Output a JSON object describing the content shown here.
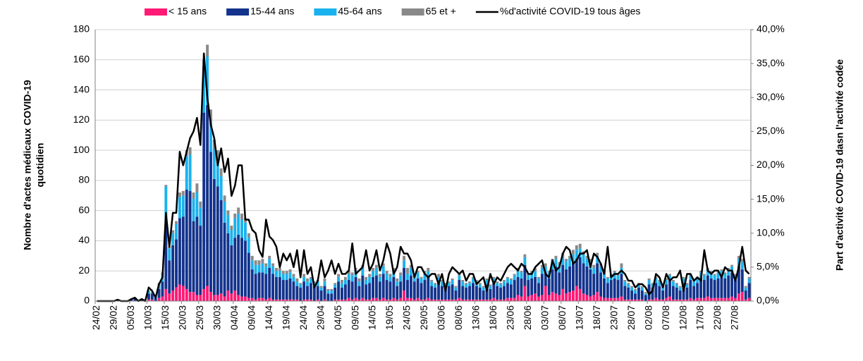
{
  "chart_data": {
    "type": "bar",
    "stacked": true,
    "y_label": [
      "Nombre d'actes médicaux COVID-19",
      "quotidien"
    ],
    "y2_label": "Part d'activité COVID-19 dasn l'activité codée",
    "categories": [
      "24/02",
      null,
      null,
      null,
      null,
      "29/02",
      null,
      null,
      null,
      null,
      "05/03",
      null,
      null,
      null,
      null,
      "10/03",
      null,
      null,
      null,
      null,
      "15/03",
      null,
      null,
      null,
      null,
      "20/03",
      null,
      null,
      null,
      null,
      "25/03",
      null,
      null,
      null,
      null,
      "30/03",
      null,
      null,
      null,
      null,
      "04/04",
      null,
      null,
      null,
      null,
      "09/04",
      null,
      null,
      null,
      null,
      "14/04",
      null,
      null,
      null,
      null,
      "19/04",
      null,
      null,
      null,
      null,
      "24/04",
      null,
      null,
      null,
      null,
      "29/04",
      null,
      null,
      null,
      null,
      "04/05",
      null,
      null,
      null,
      null,
      "09/05",
      null,
      null,
      null,
      null,
      "14/05",
      null,
      null,
      null,
      null,
      "19/05",
      null,
      null,
      null,
      null,
      "24/05",
      null,
      null,
      null,
      null,
      "29/05",
      null,
      null,
      null,
      null,
      "03/06",
      null,
      null,
      null,
      null,
      "08/06",
      null,
      null,
      null,
      null,
      "13/06",
      null,
      null,
      null,
      null,
      "18/06",
      null,
      null,
      null,
      null,
      "23/06",
      null,
      null,
      null,
      null,
      "28/06",
      null,
      null,
      null,
      null,
      "03/07",
      null,
      null,
      null,
      null,
      "08/07",
      null,
      null,
      null,
      null,
      "13/07",
      null,
      null,
      null,
      null,
      "18/07",
      null,
      null,
      null,
      null,
      "23/07",
      null,
      null,
      null,
      null,
      "28/07",
      null,
      null,
      null,
      null,
      "02/08",
      null,
      null,
      null,
      null,
      "07/08",
      null,
      null,
      null,
      null,
      "12/08",
      null,
      null,
      null,
      null,
      "17/08",
      null,
      null,
      null,
      null,
      "22/08",
      null,
      null,
      null,
      null,
      "27/08",
      null,
      null,
      null,
      null
    ],
    "series": [
      {
        "name": "< 15 ans",
        "color": "#ff1a75",
        "values": [
          0,
          0,
          0,
          0,
          0,
          0,
          0,
          0,
          0,
          0,
          0,
          0,
          0,
          0,
          0,
          1,
          1,
          0,
          2,
          3,
          8,
          5,
          7,
          9,
          11,
          10,
          8,
          6,
          6,
          4,
          4,
          8,
          10,
          6,
          4,
          4,
          5,
          3,
          7,
          5,
          7,
          4,
          3,
          3,
          2,
          2,
          1,
          2,
          2,
          1,
          2,
          1,
          1,
          1,
          1,
          1,
          1,
          1,
          1,
          0,
          1,
          1,
          1,
          0,
          1,
          0,
          1,
          0,
          0,
          1,
          1,
          1,
          1,
          2,
          1,
          2,
          1,
          2,
          1,
          1,
          2,
          2,
          1,
          2,
          1,
          1,
          2,
          1,
          2,
          7,
          2,
          2,
          1,
          2,
          1,
          1,
          2,
          1,
          1,
          1,
          1,
          1,
          1,
          1,
          1,
          2,
          1,
          1,
          1,
          1,
          1,
          1,
          1,
          1,
          1,
          2,
          1,
          1,
          1,
          2,
          2,
          2,
          4,
          3,
          10,
          3,
          4,
          5,
          3,
          4,
          10,
          4,
          6,
          5,
          4,
          8,
          5,
          6,
          7,
          10,
          8,
          5,
          4,
          3,
          4,
          6,
          3,
          2,
          2,
          2,
          2,
          2,
          3,
          1,
          1,
          1,
          1,
          1,
          1,
          0,
          1,
          1,
          2,
          1,
          1,
          2,
          3,
          1,
          1,
          1,
          1,
          1,
          2,
          1,
          2,
          2,
          2,
          3,
          2,
          2,
          2,
          2,
          2,
          2,
          3,
          2,
          5,
          6,
          1,
          2
        ]
      },
      {
        "name": "15-44 ans",
        "color": "#13338c",
        "values": [
          0,
          0,
          0,
          0,
          0,
          0,
          0,
          0,
          0,
          0,
          1,
          2,
          0,
          1,
          0,
          4,
          4,
          2,
          6,
          10,
          43,
          22,
          30,
          32,
          44,
          46,
          66,
          67,
          47,
          52,
          46,
          117,
          120,
          93,
          77,
          72,
          62,
          49,
          38,
          32,
          35,
          40,
          39,
          37,
          30,
          19,
          17,
          17,
          17,
          17,
          20,
          17,
          15,
          15,
          13,
          13,
          14,
          12,
          9,
          9,
          12,
          9,
          11,
          10,
          9,
          7,
          9,
          5,
          5,
          8,
          12,
          8,
          10,
          12,
          12,
          14,
          9,
          15,
          10,
          11,
          14,
          15,
          12,
          16,
          13,
          12,
          14,
          9,
          11,
          15,
          12,
          15,
          12,
          13,
          11,
          13,
          14,
          9,
          8,
          12,
          9,
          8,
          9,
          10,
          6,
          12,
          9,
          8,
          9,
          11,
          9,
          8,
          6,
          10,
          7,
          10,
          9,
          8,
          9,
          10,
          9,
          12,
          12,
          12,
          14,
          11,
          11,
          11,
          9,
          14,
          9,
          11,
          15,
          18,
          15,
          16,
          16,
          17,
          18,
          18,
          21,
          20,
          19,
          18,
          14,
          19,
          16,
          13,
          10,
          12,
          13,
          12,
          15,
          9,
          8,
          6,
          4,
          8,
          6,
          4,
          10,
          8,
          10,
          9,
          6,
          9,
          11,
          9,
          8,
          6,
          11,
          8,
          12,
          9,
          10,
          13,
          12,
          14,
          13,
          12,
          13,
          14,
          13,
          15,
          16,
          12,
          18,
          15,
          6,
          10
        ]
      },
      {
        "name": "45-64 ans",
        "color": "#1ab2ee",
        "values": [
          0,
          0,
          0,
          0,
          0,
          0,
          0,
          0,
          0,
          0,
          0,
          0,
          0,
          0,
          0,
          2,
          1,
          1,
          3,
          5,
          25,
          8,
          8,
          10,
          14,
          14,
          22,
          24,
          15,
          16,
          12,
          30,
          32,
          20,
          20,
          18,
          16,
          14,
          12,
          10,
          13,
          14,
          12,
          12,
          10,
          6,
          6,
          5,
          6,
          5,
          6,
          5,
          4,
          4,
          4,
          4,
          4,
          3,
          3,
          2,
          3,
          3,
          3,
          2,
          3,
          2,
          3,
          2,
          2,
          2,
          3,
          3,
          3,
          4,
          4,
          4,
          3,
          5,
          3,
          4,
          4,
          5,
          3,
          5,
          4,
          3,
          4,
          3,
          4,
          5,
          4,
          5,
          3,
          4,
          3,
          4,
          4,
          3,
          2,
          3,
          3,
          2,
          2,
          3,
          2,
          3,
          3,
          2,
          2,
          3,
          3,
          2,
          2,
          3,
          2,
          3,
          2,
          2,
          3,
          3,
          3,
          3,
          4,
          4,
          5,
          3,
          4,
          4,
          3,
          4,
          4,
          4,
          5,
          5,
          5,
          5,
          5,
          5,
          6,
          6,
          6,
          6,
          5,
          5,
          4,
          5,
          4,
          4,
          3,
          3,
          4,
          3,
          4,
          3,
          2,
          2,
          2,
          2,
          2,
          1,
          3,
          2,
          3,
          3,
          2,
          3,
          3,
          3,
          2,
          2,
          3,
          2,
          3,
          3,
          3,
          4,
          3,
          4,
          4,
          3,
          4,
          4,
          3,
          4,
          4,
          3,
          5,
          5,
          2,
          3
        ]
      },
      {
        "name": "65 et +",
        "color": "#898989",
        "values": [
          0,
          0,
          0,
          0,
          0,
          0,
          0,
          0,
          0,
          0,
          0,
          0,
          0,
          0,
          0,
          0,
          0,
          0,
          1,
          1,
          1,
          1,
          2,
          2,
          3,
          3,
          4,
          5,
          4,
          6,
          4,
          5,
          8,
          8,
          6,
          6,
          5,
          4,
          3,
          3,
          3,
          4,
          4,
          3,
          3,
          3,
          3,
          3,
          3,
          2,
          2,
          2,
          2,
          2,
          2,
          2,
          2,
          2,
          2,
          1,
          2,
          2,
          1,
          1,
          1,
          1,
          2,
          1,
          1,
          1,
          2,
          2,
          2,
          2,
          2,
          2,
          2,
          2,
          2,
          2,
          2,
          2,
          2,
          2,
          2,
          2,
          2,
          2,
          2,
          3,
          4,
          2,
          2,
          1,
          1,
          2,
          2,
          1,
          1,
          2,
          1,
          1,
          1,
          1,
          1,
          1,
          1,
          1,
          1,
          1,
          1,
          1,
          1,
          1,
          1,
          1,
          1,
          1,
          1,
          1,
          1,
          1,
          2,
          1,
          2,
          1,
          1,
          2,
          1,
          2,
          2,
          1,
          2,
          2,
          2,
          3,
          2,
          2,
          3,
          3,
          3,
          2,
          2,
          2,
          2,
          2,
          2,
          1,
          1,
          1,
          1,
          1,
          3,
          1,
          1,
          1,
          1,
          1,
          1,
          1,
          1,
          1,
          1,
          1,
          1,
          1,
          1,
          1,
          1,
          1,
          1,
          1,
          1,
          1,
          1,
          1,
          1,
          1,
          1,
          1,
          1,
          1,
          1,
          1,
          1,
          1,
          2,
          2,
          1,
          1
        ]
      },
      {
        "name": "%d'activité COVID-19 tous âges",
        "color": "#000000",
        "type": "line",
        "axis": "y2",
        "values": [
          0,
          0,
          0,
          0,
          0,
          0,
          0.2,
          0,
          0,
          0,
          0.3,
          0.5,
          0,
          0.3,
          0,
          2,
          1.5,
          0.5,
          2.5,
          3.5,
          13,
          8,
          13,
          13,
          22,
          20,
          22,
          24,
          25,
          27,
          23,
          36.5,
          30,
          26,
          24,
          20,
          22.5,
          19,
          21,
          15.5,
          17,
          20,
          20,
          12,
          12,
          10.5,
          10,
          7.5,
          6.5,
          12,
          9.5,
          9,
          8,
          5,
          7,
          6,
          7,
          5,
          7.5,
          3.5,
          7.5,
          4,
          5,
          2,
          3,
          6,
          3.5,
          4.5,
          6,
          4,
          5.5,
          4,
          4,
          4.5,
          8.5,
          4,
          4.5,
          5,
          7.5,
          4.5,
          5.5,
          7.5,
          4.5,
          6,
          8.5,
          7,
          4,
          5,
          8,
          7,
          7,
          6,
          3.5,
          5,
          5,
          4,
          3.5,
          4,
          4,
          2.5,
          4,
          1.5,
          4,
          5,
          4.5,
          4,
          4.5,
          3,
          4,
          4,
          2.5,
          3,
          3.5,
          1.5,
          4,
          2.5,
          3.5,
          3,
          4,
          5,
          5.5,
          5,
          4.5,
          5.5,
          5,
          4,
          4,
          5,
          5.5,
          6,
          4,
          3.5,
          6,
          4.5,
          5,
          7,
          8,
          7.5,
          5.5,
          6,
          7,
          7,
          7.5,
          5,
          7,
          6.5,
          5.5,
          4,
          8,
          3.5,
          4,
          4,
          4.5,
          4,
          3,
          3,
          2,
          2.5,
          2.5,
          2,
          1,
          1.5,
          4,
          3.5,
          2,
          4,
          3,
          3.5,
          3.5,
          4.5,
          1.5,
          4,
          4,
          3,
          3.5,
          3,
          7.5,
          4.5,
          4,
          4.5,
          4.5,
          3.5,
          5,
          4.5,
          4.5,
          3,
          5,
          8,
          4.5,
          4
        ]
      }
    ],
    "ylim": [
      0,
      180
    ],
    "yticks": [
      0,
      20,
      40,
      60,
      80,
      100,
      120,
      140,
      160,
      180
    ],
    "y2lim": [
      0,
      40
    ],
    "y2ticks": [
      {
        "value": 0,
        "label": "0,0%"
      },
      {
        "value": 5,
        "label": "5,0%"
      },
      {
        "value": 10,
        "label": "10,0%"
      },
      {
        "value": 15,
        "label": "15,0%"
      },
      {
        "value": 20,
        "label": "20,0%"
      },
      {
        "value": 25,
        "label": "25,0%"
      },
      {
        "value": 30,
        "label": "30,0%"
      },
      {
        "value": 35,
        "label": "35,0%"
      },
      {
        "value": 40,
        "label": "40,0%"
      }
    ],
    "grid": true,
    "legend": "top"
  }
}
